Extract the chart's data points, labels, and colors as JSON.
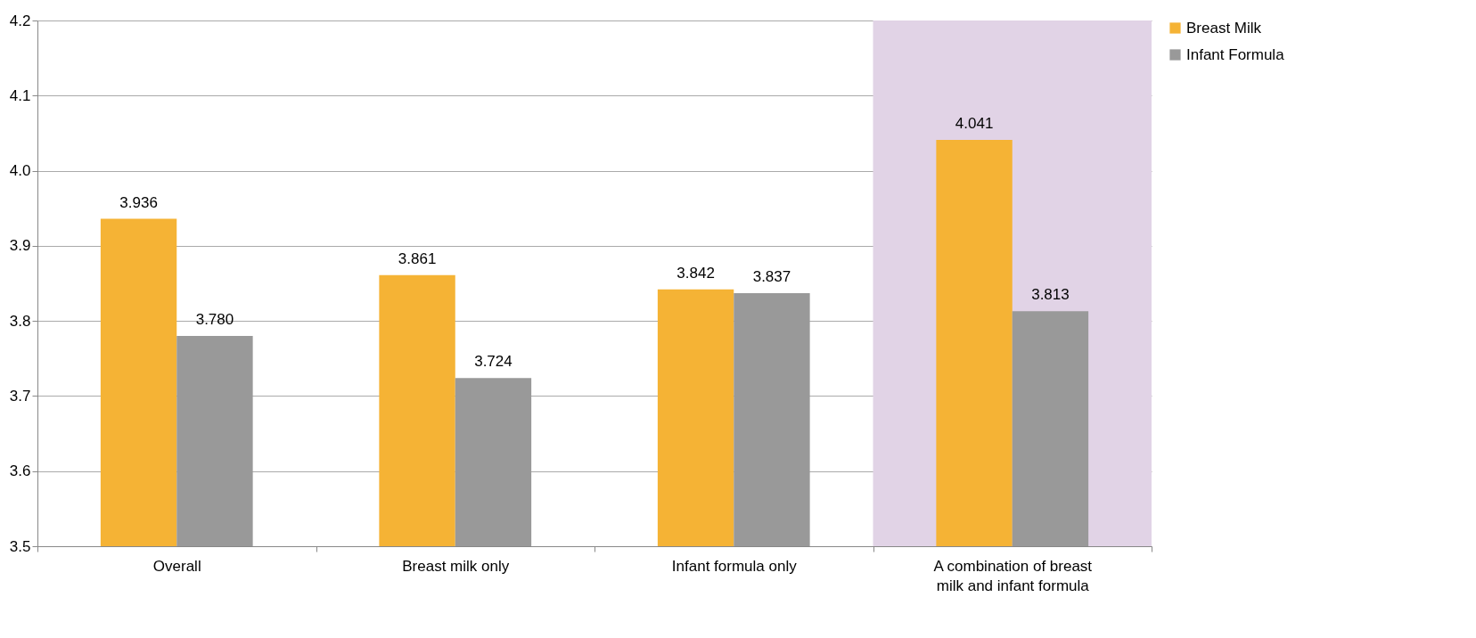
{
  "chart_data": {
    "type": "bar",
    "categories": [
      "Overall",
      "Breast milk only",
      "Infant formula only",
      "A combination of breast milk and infant formula"
    ],
    "series": [
      {
        "name": "Breast Milk",
        "color": "#f5b335",
        "values": [
          3.936,
          3.861,
          3.842,
          4.041
        ],
        "value_labels": [
          "3.936",
          "3.861",
          "3.842",
          "4.041"
        ]
      },
      {
        "name": "Infant Formula",
        "color": "#999999",
        "values": [
          3.78,
          3.724,
          3.837,
          3.813
        ],
        "value_labels": [
          "3.780",
          "3.724",
          "3.837",
          "3.813"
        ]
      }
    ],
    "ylim": [
      3.5,
      4.2
    ],
    "yticks": [
      3.5,
      3.6,
      3.7,
      3.8,
      3.9,
      {
        "value": 4,
        "label": "4.0"
      },
      4.1,
      4.2
    ],
    "grid": "y",
    "legend": "right",
    "bands": [
      {
        "axis": "x",
        "from": "A combination of breast milk and infant formula",
        "to": "A combination of breast milk and infant formula",
        "color": "#e1d3e6"
      }
    ]
  }
}
